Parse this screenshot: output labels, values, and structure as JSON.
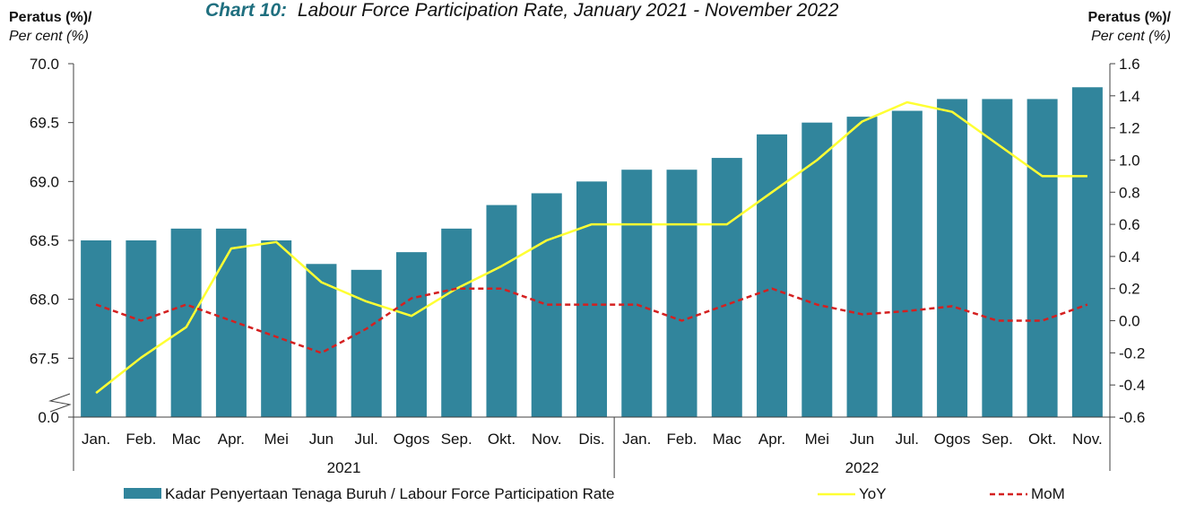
{
  "chart_data": {
    "type": "bar",
    "title_lead": "Chart 10:",
    "title_rest": "Labour Force Participation Rate, January 2021 - November 2022",
    "left_axis": {
      "label_line1": "Peratus (%)/",
      "label_line2": "Per cent (%)",
      "ticks": [
        "0.0",
        "67.5",
        "68.0",
        "68.5",
        "69.0",
        "69.5",
        "70.0"
      ],
      "range": [
        67.0,
        70.0
      ],
      "axis_break": true
    },
    "right_axis": {
      "label_line1": "Peratus (%)/",
      "label_line2": "Per cent (%)",
      "ticks": [
        "-0.6",
        "-0.4",
        "-0.2",
        "0.0",
        "0.2",
        "0.4",
        "0.6",
        "0.8",
        "1.0",
        "1.2",
        "1.4",
        "1.6"
      ],
      "range": [
        -0.6,
        1.6
      ]
    },
    "categories": [
      "Jan.",
      "Feb.",
      "Mac",
      "Apr.",
      "Mei",
      "Jun",
      "Jul.",
      "Ogos",
      "Sep.",
      "Okt.",
      "Nov.",
      "Dis.",
      "Jan.",
      "Feb.",
      "Mac",
      "Apr.",
      "Mei",
      "Jun",
      "Jul.",
      "Ogos",
      "Sep.",
      "Okt.",
      "Nov."
    ],
    "year_groups": [
      {
        "label": "2021",
        "count": 12
      },
      {
        "label": "2022",
        "count": 11
      }
    ],
    "series": [
      {
        "name": "Kadar Penyertaan Tenaga Buruh / Labour Force Participation Rate",
        "kind": "bar",
        "axis": "left",
        "color": "#31859c",
        "values": [
          68.5,
          68.5,
          68.6,
          68.6,
          68.5,
          68.3,
          68.25,
          68.4,
          68.6,
          68.8,
          68.9,
          69.0,
          69.1,
          69.1,
          69.2,
          69.4,
          69.5,
          69.55,
          69.6,
          69.7,
          69.7,
          69.7,
          69.8
        ]
      },
      {
        "name": "YoY",
        "kind": "line",
        "axis": "right",
        "color": "#ffff33",
        "values": [
          -0.45,
          -0.23,
          -0.04,
          0.45,
          0.49,
          0.24,
          0.12,
          0.03,
          0.2,
          0.34,
          0.5,
          0.6,
          0.6,
          0.6,
          0.6,
          0.8,
          1.0,
          1.24,
          1.36,
          1.3,
          1.1,
          0.9,
          0.9
        ]
      },
      {
        "name": "MoM",
        "kind": "line",
        "axis": "right",
        "color": "#d42020",
        "dashed": true,
        "values": [
          0.1,
          0.0,
          0.1,
          0.0,
          -0.1,
          -0.2,
          -0.05,
          0.14,
          0.2,
          0.2,
          0.1,
          0.1,
          0.1,
          0.0,
          0.1,
          0.2,
          0.1,
          0.04,
          0.06,
          0.09,
          0.0,
          0.0,
          0.1
        ]
      }
    ],
    "legend_position": "bottom",
    "grid": false
  }
}
